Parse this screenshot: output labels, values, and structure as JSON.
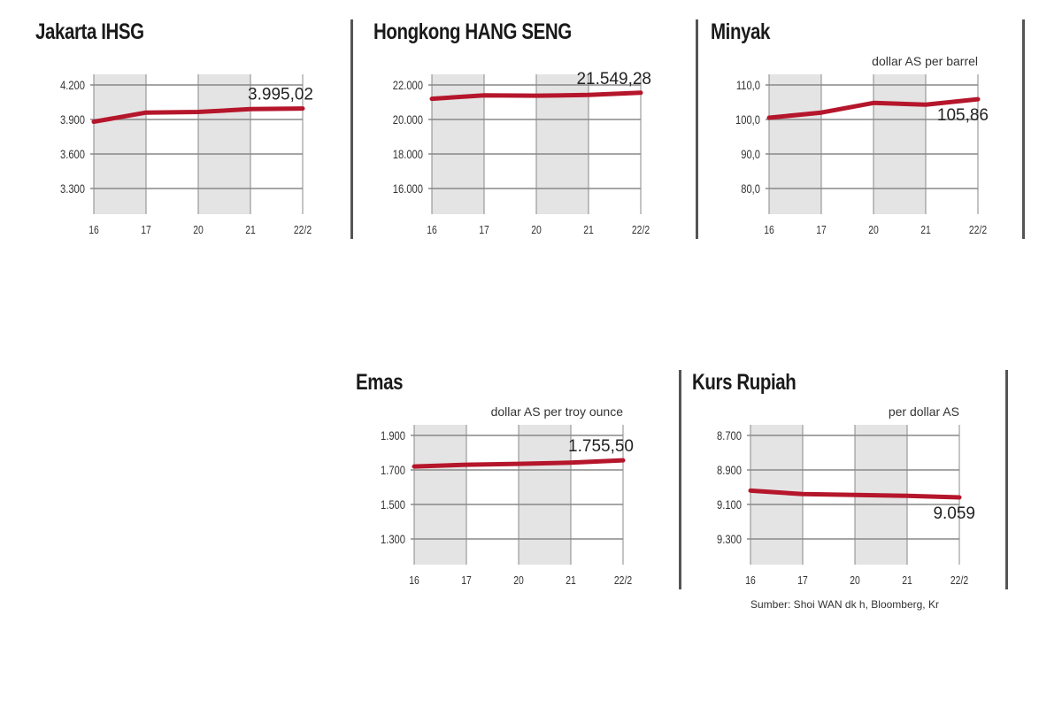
{
  "charts": [
    {
      "title": "Jakarta IHSG",
      "unit": "",
      "value_label": "3.995,02"
    },
    {
      "title": "Hongkong HANG SENG",
      "unit": "",
      "value_label": "21.549,28"
    },
    {
      "title": "Minyak",
      "unit": "dollar AS per barrel",
      "value_label": "105,86"
    },
    {
      "title": "Emas",
      "unit": "dollar AS per troy ounce",
      "value_label": "1.755,50"
    },
    {
      "title": "Kurs Rupiah",
      "unit": "per dollar AS",
      "value_label": "9.059"
    }
  ],
  "source": "Sumber: Shoi WAN dk h, Bloomberg, Kr",
  "colors": {
    "line": "#b5162b",
    "grid": "#888888",
    "shade": "#e4e4e4"
  },
  "chart_data": [
    {
      "type": "line",
      "title": "Jakarta IHSG",
      "categories": [
        "16",
        "17",
        "20",
        "21",
        "22/2"
      ],
      "yticks": [
        "4.200",
        "3.900",
        "3.600",
        "3.300"
      ],
      "ylim": [
        3300,
        4200
      ],
      "reversed": false,
      "series": [
        {
          "values": [
            3880,
            3960,
            3965,
            3990,
            3995.02
          ]
        }
      ],
      "annotation": "3.995,02",
      "grid": true
    },
    {
      "type": "line",
      "title": "Hongkong HANG SENG",
      "categories": [
        "16",
        "17",
        "20",
        "21",
        "22/2"
      ],
      "yticks": [
        "22.000",
        "20.000",
        "18.000",
        "16.000"
      ],
      "ylim": [
        16000,
        22000
      ],
      "reversed": false,
      "series": [
        {
          "values": [
            21200,
            21400,
            21380,
            21420,
            21549.28
          ]
        }
      ],
      "annotation": "21.549,28",
      "grid": true
    },
    {
      "type": "line",
      "title": "Minyak",
      "ylabel": "dollar AS per barrel",
      "categories": [
        "16",
        "17",
        "20",
        "21",
        "22/2"
      ],
      "yticks": [
        "110,0",
        "100,0",
        "90,0",
        "80,0"
      ],
      "ylim": [
        80,
        110
      ],
      "reversed": false,
      "series": [
        {
          "values": [
            100.5,
            102,
            104.8,
            104.3,
            105.86
          ]
        }
      ],
      "annotation": "105,86",
      "grid": true
    },
    {
      "type": "line",
      "title": "Emas",
      "ylabel": "dollar AS per troy ounce",
      "categories": [
        "16",
        "17",
        "20",
        "21",
        "22/2"
      ],
      "yticks": [
        "1.900",
        "1.700",
        "1.500",
        "1.300"
      ],
      "ylim": [
        1300,
        1900
      ],
      "reversed": false,
      "series": [
        {
          "values": [
            1720,
            1730,
            1735,
            1742,
            1755.5
          ]
        }
      ],
      "annotation": "1.755,50",
      "grid": true
    },
    {
      "type": "line",
      "title": "Kurs Rupiah",
      "ylabel": "per dollar AS",
      "categories": [
        "16",
        "17",
        "20",
        "21",
        "22/2"
      ],
      "yticks": [
        "8.700",
        "8.900",
        "9.100",
        "9.300"
      ],
      "ylim": [
        8700,
        9300
      ],
      "reversed": true,
      "series": [
        {
          "values": [
            9020,
            9040,
            9045,
            9050,
            9059
          ]
        }
      ],
      "annotation": "9.059",
      "grid": true
    }
  ]
}
